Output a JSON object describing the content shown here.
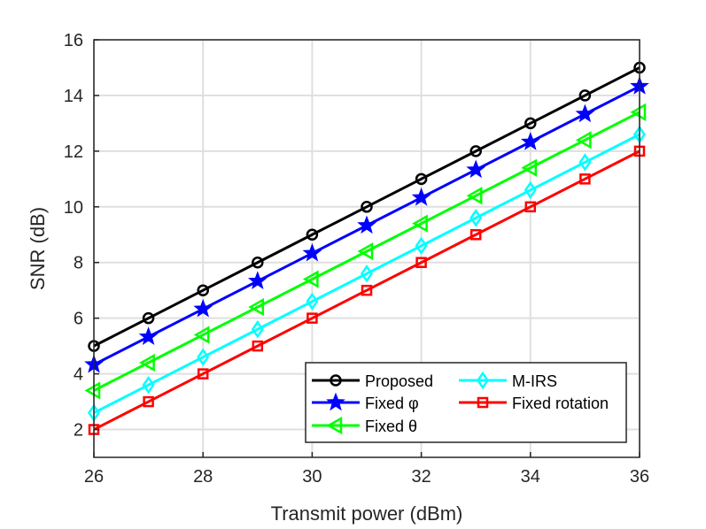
{
  "chart_data": {
    "type": "line",
    "title": "",
    "xlabel": "Transmit power (dBm)",
    "ylabel": "SNR (dB)",
    "xlim": [
      26,
      36
    ],
    "ylim": [
      1,
      16
    ],
    "xticks": [
      26,
      28,
      30,
      32,
      34,
      36
    ],
    "yticks": [
      2,
      4,
      6,
      8,
      10,
      12,
      14,
      16
    ],
    "grid": true,
    "legend_placement": "bottom-right",
    "x": [
      26,
      27,
      28,
      29,
      30,
      31,
      32,
      33,
      34,
      35,
      36
    ],
    "series": [
      {
        "name": "Proposed",
        "color": "#000000",
        "marker": "circle",
        "values": [
          5,
          6,
          7,
          8,
          9,
          10,
          11,
          12,
          13,
          14,
          15
        ]
      },
      {
        "name": "Fixed φ",
        "color": "#0000ff",
        "marker": "star",
        "values": [
          4.33,
          5.33,
          6.33,
          7.33,
          8.33,
          9.33,
          10.33,
          11.33,
          12.33,
          13.33,
          14.33
        ]
      },
      {
        "name": "Fixed θ",
        "color": "#00ff00",
        "marker": "triangle-left",
        "values": [
          3.4,
          4.4,
          5.4,
          6.4,
          7.4,
          8.4,
          9.4,
          10.4,
          11.4,
          12.4,
          13.4
        ]
      },
      {
        "name": "M-IRS",
        "color": "#00ffff",
        "marker": "diamond",
        "values": [
          2.6,
          3.6,
          4.6,
          5.6,
          6.6,
          7.6,
          8.6,
          9.6,
          10.6,
          11.6,
          12.6
        ]
      },
      {
        "name": "Fixed rotation",
        "color": "#ff0000",
        "marker": "square",
        "values": [
          2,
          3,
          4,
          5,
          6,
          7,
          8,
          9,
          10,
          11,
          12
        ]
      }
    ]
  }
}
